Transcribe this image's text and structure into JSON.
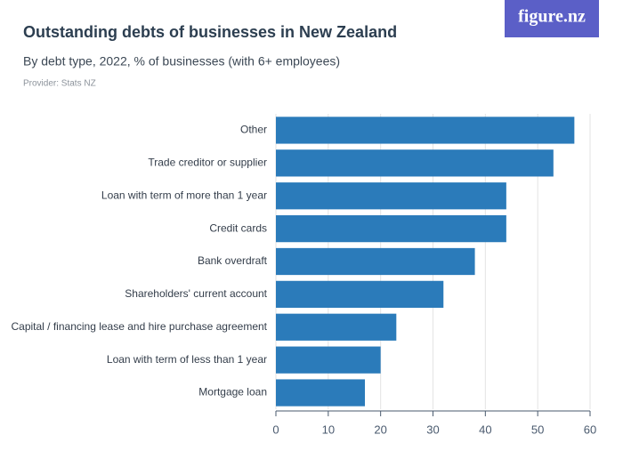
{
  "chart_data": {
    "type": "bar",
    "orientation": "horizontal",
    "title": "Outstanding debts of businesses in New Zealand",
    "subtitle": "By debt type, 2022, % of businesses (with 6+ employees)",
    "provider": "Provider: Stats NZ",
    "logo": "figure.nz",
    "categories": [
      "Other",
      "Trade creditor or supplier",
      "Loan with term of more than 1 year",
      "Credit cards",
      "Bank overdraft",
      "Shareholders' current account",
      "Capital / financing lease and hire purchase agreement",
      "Loan with term of less than 1 year",
      "Mortgage loan"
    ],
    "values": [
      57,
      53,
      44,
      44,
      38,
      32,
      23,
      20,
      17
    ],
    "color": "#2b7bba",
    "xlim": [
      0,
      60
    ],
    "xticks": [
      0,
      10,
      20,
      30,
      40,
      50,
      60
    ],
    "grid": true
  }
}
